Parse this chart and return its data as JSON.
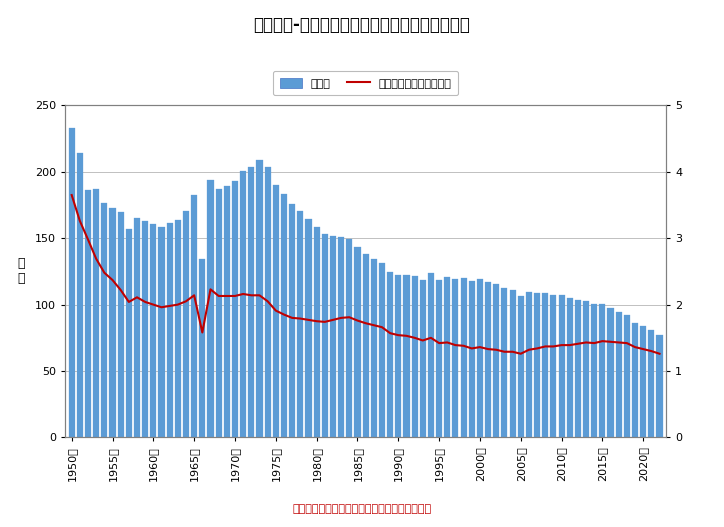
{
  "title": "図表　２-３　出生数及び合計特殊出生率の推移",
  "ylabel_left": "万\n人",
  "legend_bar": "出生数",
  "legend_line": "合計特殊出生率（右軸）",
  "source_text": "出典：厚生労働省「人口動態統計」より作成。",
  "years": [
    1950,
    1951,
    1952,
    1953,
    1954,
    1955,
    1956,
    1957,
    1958,
    1959,
    1960,
    1961,
    1962,
    1963,
    1964,
    1965,
    1966,
    1967,
    1968,
    1969,
    1970,
    1971,
    1972,
    1973,
    1974,
    1975,
    1976,
    1977,
    1978,
    1979,
    1980,
    1981,
    1982,
    1983,
    1984,
    1985,
    1986,
    1987,
    1988,
    1989,
    1990,
    1991,
    1992,
    1993,
    1994,
    1995,
    1996,
    1997,
    1998,
    1999,
    2000,
    2001,
    2002,
    2003,
    2004,
    2005,
    2006,
    2007,
    2008,
    2009,
    2010,
    2011,
    2012,
    2013,
    2014,
    2015,
    2016,
    2017,
    2018,
    2019,
    2020,
    2021,
    2022
  ],
  "births": [
    233.2,
    213.9,
    186.6,
    186.8,
    176.8,
    173.0,
    170.0,
    156.6,
    165.2,
    162.9,
    160.7,
    158.5,
    161.2,
    163.4,
    170.7,
    182.3,
    134.2,
    193.6,
    187.1,
    189.3,
    193.4,
    200.6,
    203.9,
    209.2,
    203.7,
    190.2,
    183.6,
    175.5,
    170.8,
    164.5,
    158.6,
    153.0,
    151.5,
    150.7,
    149.7,
    143.1,
    138.2,
    134.7,
    131.7,
    124.7,
    122.2,
    122.3,
    121.8,
    118.8,
    123.8,
    118.7,
    120.6,
    119.1,
    120.3,
    117.7,
    119.0,
    117.1,
    115.3,
    112.2,
    111.0,
    106.3,
    109.3,
    108.9,
    109.1,
    107.0,
    107.1,
    105.1,
    103.7,
    102.9,
    100.4,
    100.5,
    97.7,
    94.6,
    91.8,
    86.5,
    84.1,
    81.2,
    77.1
  ],
  "tfr": [
    3.65,
    3.26,
    2.98,
    2.69,
    2.48,
    2.37,
    2.22,
    2.04,
    2.11,
    2.04,
    2.0,
    1.96,
    1.98,
    2.0,
    2.05,
    2.14,
    1.58,
    2.23,
    2.13,
    2.13,
    2.13,
    2.16,
    2.14,
    2.14,
    2.05,
    1.91,
    1.85,
    1.8,
    1.79,
    1.77,
    1.75,
    1.74,
    1.77,
    1.8,
    1.81,
    1.76,
    1.72,
    1.69,
    1.66,
    1.57,
    1.54,
    1.53,
    1.5,
    1.46,
    1.5,
    1.42,
    1.43,
    1.39,
    1.38,
    1.34,
    1.36,
    1.33,
    1.32,
    1.29,
    1.29,
    1.26,
    1.32,
    1.34,
    1.37,
    1.37,
    1.39,
    1.39,
    1.41,
    1.43,
    1.42,
    1.45,
    1.44,
    1.43,
    1.42,
    1.36,
    1.33,
    1.3,
    1.26
  ],
  "bar_color": "#5B9BD5",
  "bar_edge_color": "#4472C4",
  "line_color": "#C00000",
  "ylim_left": [
    0,
    250
  ],
  "ylim_right": [
    0,
    5
  ],
  "yticks_left": [
    0,
    50,
    100,
    150,
    200,
    250
  ],
  "yticks_right": [
    0,
    1,
    2,
    3,
    4,
    5
  ],
  "xtick_labels": [
    "1950年",
    "1955年",
    "1960年",
    "1965年",
    "1970年",
    "1975年",
    "1980年",
    "1985年",
    "1990年",
    "1995年",
    "2000年",
    "2005年",
    "2010年",
    "2015年",
    "2020年"
  ],
  "xtick_positions": [
    1950,
    1955,
    1960,
    1965,
    1970,
    1975,
    1980,
    1985,
    1990,
    1995,
    2000,
    2005,
    2010,
    2015,
    2020
  ],
  "background_color": "#ffffff",
  "plot_bg_color": "#ffffff",
  "grid_color": "#c0c0c0",
  "title_fontsize": 12,
  "axis_fontsize": 8,
  "source_color": "#C00000",
  "legend_fontsize": 8,
  "border_color": "#808080"
}
